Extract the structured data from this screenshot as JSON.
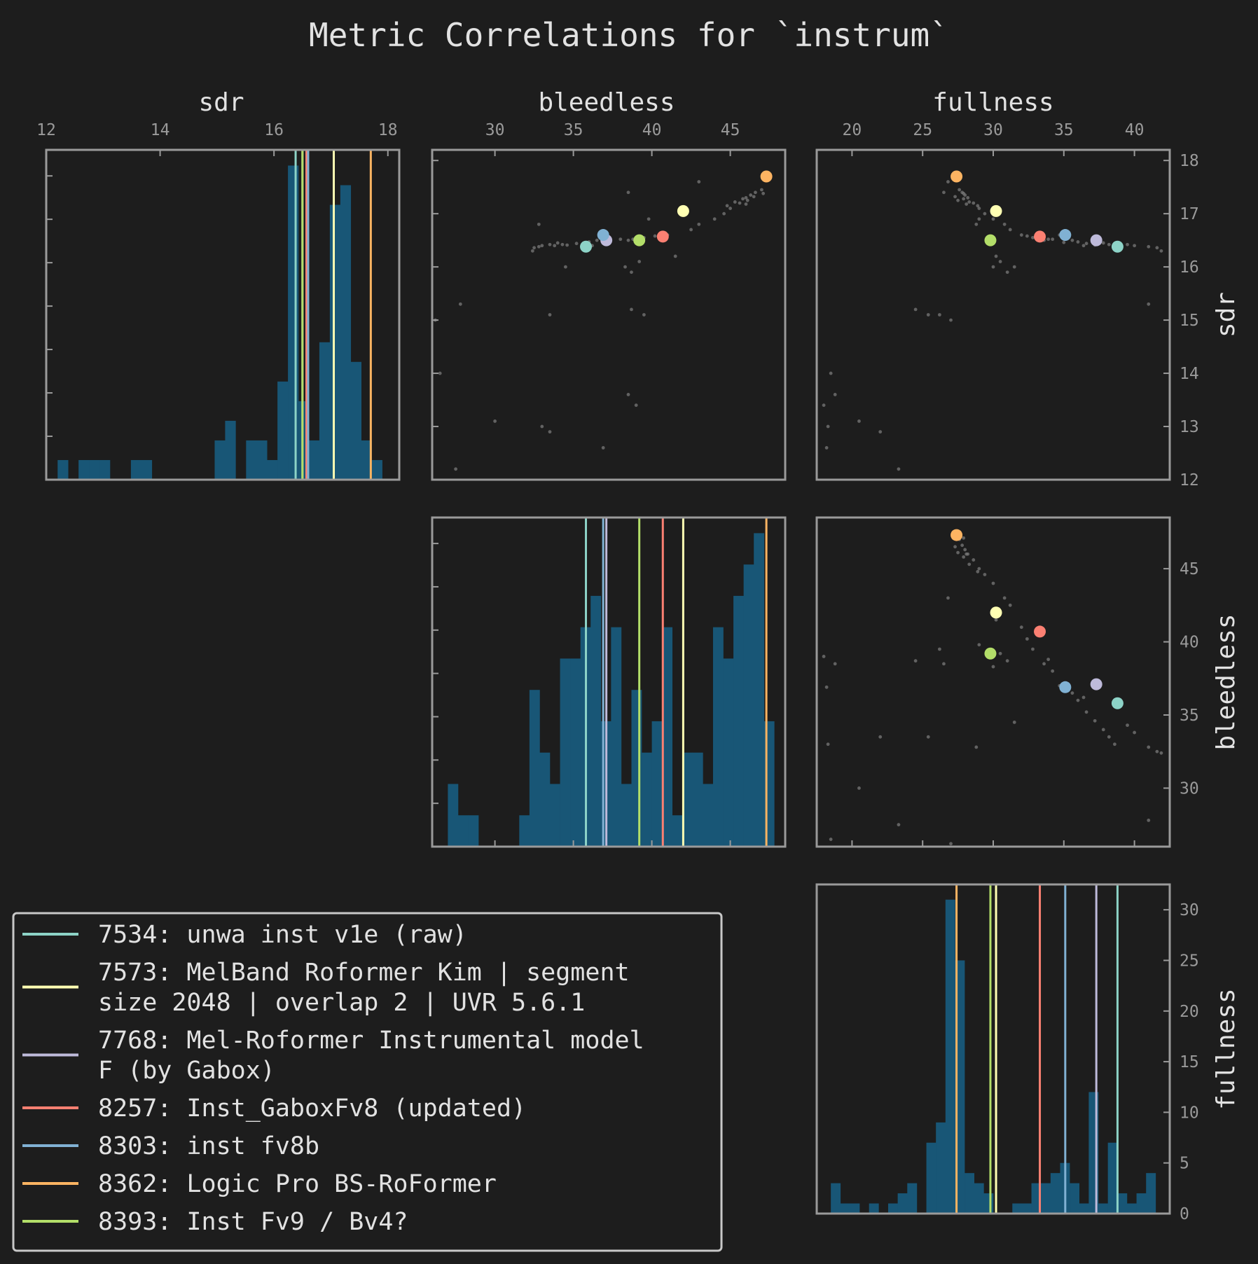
{
  "chart_data": {
    "type": "pairplot",
    "title": "Metric Correlations for `instrum`",
    "variables": [
      "sdr",
      "bleedless",
      "fullness"
    ],
    "axis_ranges": {
      "sdr": [
        12,
        18.2
      ],
      "bleedless": [
        26,
        48.5
      ],
      "fullness": [
        17.5,
        42.5
      ]
    },
    "ticks": {
      "sdr": [
        12,
        13,
        14,
        15,
        16,
        17,
        18
      ],
      "sdr_top": [
        12,
        14,
        16,
        18
      ],
      "bleedless": [
        30,
        35,
        40,
        45
      ],
      "fullness": [
        20,
        25,
        30,
        35,
        40
      ],
      "fullness_count": [
        0,
        5,
        10,
        15,
        20,
        25,
        30
      ]
    },
    "grid": false,
    "legend_position": "bottom-left",
    "hist_color": "#185676",
    "background_points_color": "#7a7a7a",
    "highlighted": [
      {
        "label": "7534: unwa inst v1e (raw)",
        "sdr": 16.38,
        "bleedless": 35.8,
        "fullness": 38.8,
        "color": "#8dd3c7"
      },
      {
        "label": "7573: MelBand Roformer Kim | segment size 2048 | overlap 2 | UVR 5.6.1",
        "sdr": 17.05,
        "bleedless": 42.0,
        "fullness": 30.2,
        "color": "#ffffb3"
      },
      {
        "label": "7768: Mel-Roformer Instrumental model F (by Gabox)",
        "sdr": 16.5,
        "bleedless": 37.1,
        "fullness": 37.3,
        "color": "#bebada"
      },
      {
        "label": "8257: Inst_GaboxFv8 (updated)",
        "sdr": 16.57,
        "bleedless": 40.7,
        "fullness": 33.3,
        "color": "#fb8072"
      },
      {
        "label": "8303: inst fv8b",
        "sdr": 16.6,
        "bleedless": 36.9,
        "fullness": 35.1,
        "color": "#80b1d3"
      },
      {
        "label": "8362: Logic Pro BS-RoFormer",
        "sdr": 17.7,
        "bleedless": 47.3,
        "fullness": 27.4,
        "color": "#fdb462"
      },
      {
        "label": "8393: Inst Fv9 / Bv4?",
        "sdr": 16.5,
        "bleedless": 39.2,
        "fullness": 29.8,
        "color": "#b3de69"
      }
    ],
    "background_points": [
      [
        16.4,
        33.0,
        38.6
      ],
      [
        16.42,
        33.5,
        38.2
      ],
      [
        16.45,
        34.0,
        37.8
      ],
      [
        16.41,
        34.6,
        37.2
      ],
      [
        16.44,
        35.2,
        36.6
      ],
      [
        16.47,
        36.0,
        36.0
      ],
      [
        16.5,
        36.5,
        35.6
      ],
      [
        16.46,
        37.0,
        35.0
      ],
      [
        16.52,
        38.0,
        34.2
      ],
      [
        16.5,
        38.5,
        33.6
      ],
      [
        16.55,
        39.5,
        32.8
      ],
      [
        16.58,
        40.2,
        32.4
      ],
      [
        16.6,
        41.0,
        32.0
      ],
      [
        16.7,
        42.5,
        31.2
      ],
      [
        16.8,
        43.0,
        30.8
      ],
      [
        16.9,
        44.0,
        30.0
      ],
      [
        17.0,
        44.6,
        29.4
      ],
      [
        17.1,
        45.0,
        29.0
      ],
      [
        17.2,
        45.6,
        28.6
      ],
      [
        17.3,
        46.0,
        28.2
      ],
      [
        17.35,
        46.3,
        28.0
      ],
      [
        17.4,
        46.6,
        27.8
      ],
      [
        17.45,
        47.0,
        27.6
      ],
      [
        17.28,
        45.8,
        27.9
      ],
      [
        17.22,
        45.3,
        28.3
      ],
      [
        17.15,
        44.8,
        28.9
      ],
      [
        17.25,
        46.1,
        27.5
      ],
      [
        17.32,
        46.5,
        27.3
      ],
      [
        17.18,
        46.0,
        28.1
      ],
      [
        17.38,
        47.1,
        27.9
      ],
      [
        16.42,
        34.3,
        39.5
      ],
      [
        16.4,
        33.8,
        40.0
      ],
      [
        16.38,
        32.8,
        41.0
      ],
      [
        16.36,
        32.5,
        41.6
      ],
      [
        16.4,
        36.2,
        36.4
      ],
      [
        16.3,
        32.4,
        41.9
      ],
      [
        16.1,
        39.2,
        30.5
      ],
      [
        15.9,
        38.7,
        31.0
      ],
      [
        16.0,
        38.3,
        30.0
      ],
      [
        16.2,
        41.5,
        30.2
      ],
      [
        16.9,
        39.8,
        29.0
      ],
      [
        17.4,
        38.5,
        26.5
      ],
      [
        17.6,
        43.0,
        26.8
      ],
      [
        16.8,
        32.8,
        28.8
      ],
      [
        15.1,
        33.5,
        25.4
      ],
      [
        15.2,
        38.7,
        24.5
      ],
      [
        15.1,
        39.5,
        26.2
      ],
      [
        14.0,
        26.5,
        18.5
      ],
      [
        13.4,
        39.0,
        18.0
      ],
      [
        13.6,
        38.5,
        18.8
      ],
      [
        13.1,
        30.0,
        20.5
      ],
      [
        12.9,
        33.5,
        22.0
      ],
      [
        12.2,
        27.5,
        23.3
      ],
      [
        12.6,
        36.9,
        18.2
      ],
      [
        15.0,
        26.2,
        27.0
      ],
      [
        15.3,
        27.8,
        41.0
      ],
      [
        13.0,
        33.0,
        18.3
      ],
      [
        16.0,
        34.5,
        31.5
      ],
      [
        16.6,
        37.0,
        34.7
      ],
      [
        16.52,
        38.8,
        33.9
      ]
    ],
    "hist_bins": {
      "sdr": {
        "range": [
          12.2,
          17.9
        ],
        "counts": [
          1,
          0,
          1,
          1,
          1,
          0,
          0,
          1,
          1,
          0,
          0,
          0,
          0,
          0,
          0,
          2,
          3,
          0,
          2,
          2,
          1,
          5,
          16,
          4,
          2,
          7,
          14,
          15,
          6,
          2,
          1
        ]
      },
      "bleedless": {
        "range": [
          27.0,
          47.8
        ],
        "counts": [
          4,
          2,
          2,
          0,
          0,
          0,
          0,
          2,
          10,
          6,
          4,
          12,
          12,
          14,
          16,
          8,
          14,
          4,
          10,
          6,
          8,
          14,
          2,
          6,
          6,
          4,
          14,
          12,
          16,
          18,
          20,
          8
        ]
      },
      "fullness": {
        "range": [
          18.5,
          41.5
        ],
        "counts": [
          3,
          1,
          1,
          0,
          1,
          0,
          1,
          2,
          3,
          0,
          7,
          9,
          31,
          25,
          4,
          3,
          2,
          0,
          0,
          1,
          1,
          3,
          3,
          4,
          5,
          3,
          1,
          12,
          1,
          7,
          2,
          1,
          2,
          4
        ]
      }
    }
  }
}
